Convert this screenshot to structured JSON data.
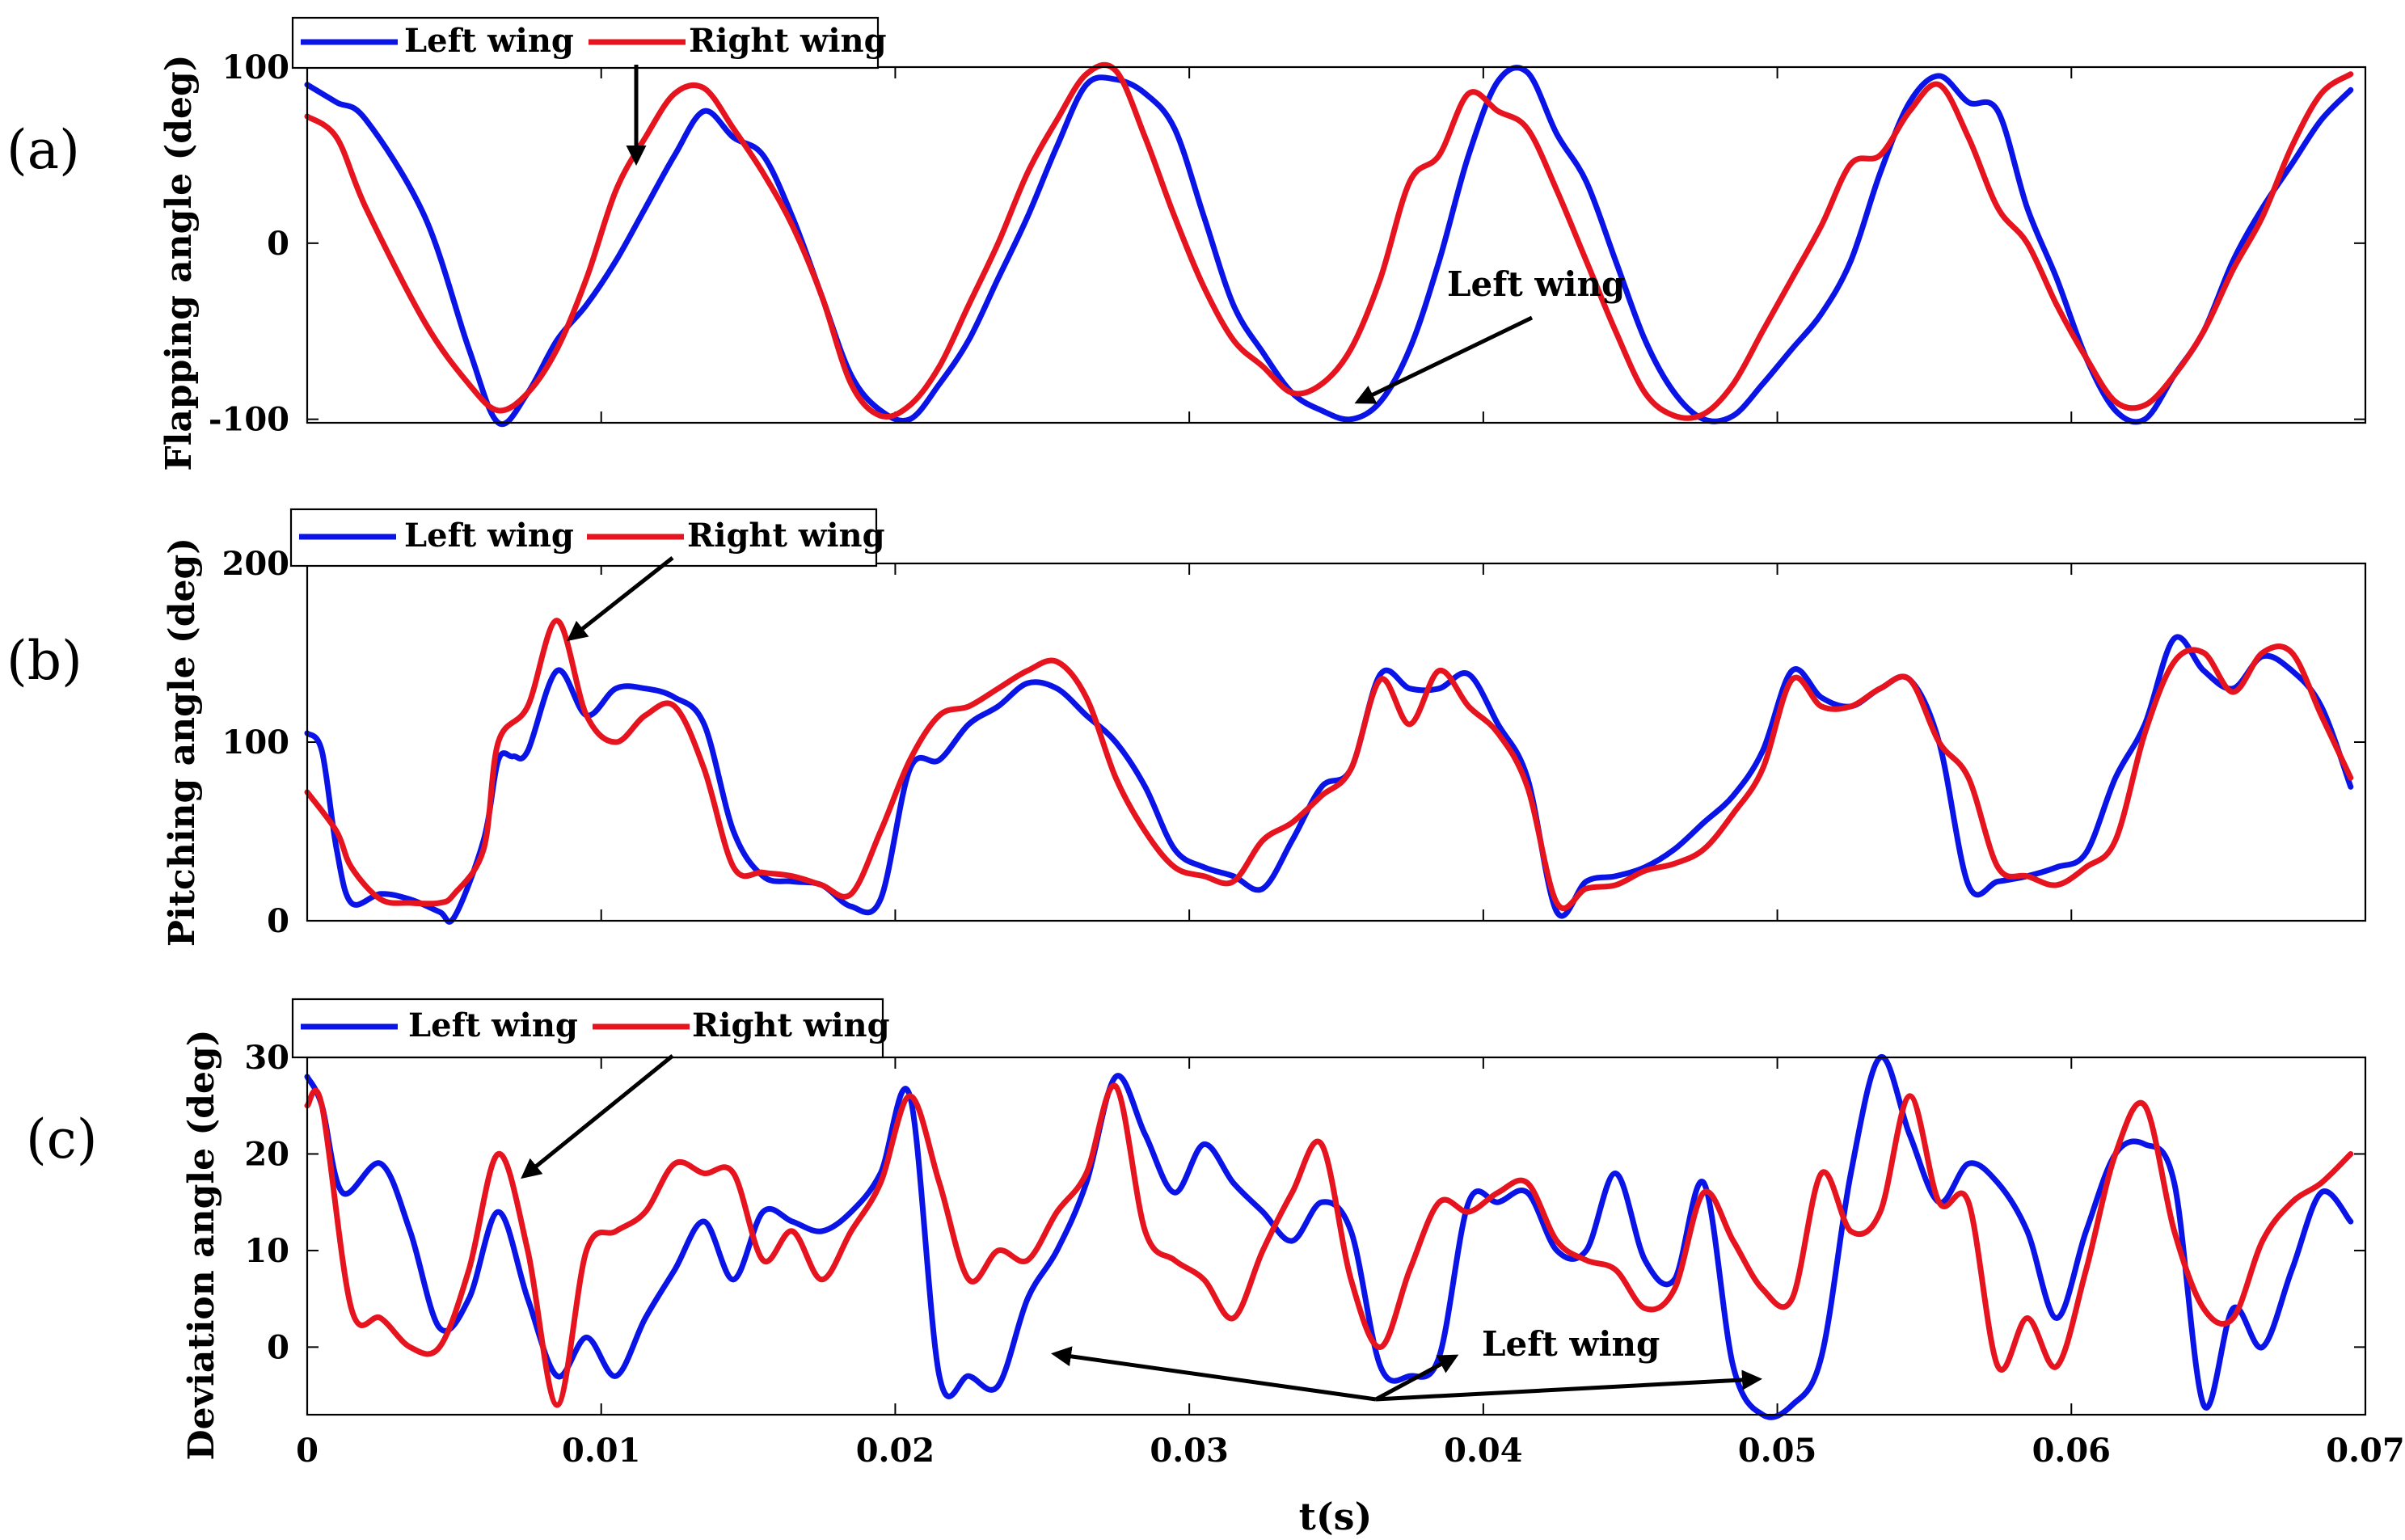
{
  "colors": {
    "left": "#0a14e6",
    "right": "#e6141e"
  },
  "xlabel": "t(s)",
  "x_ticks": [
    0,
    0.01,
    0.02,
    0.03,
    0.04,
    0.05,
    0.06,
    0.07
  ],
  "x_tick_labels": [
    "0",
    "0.01",
    "0.02",
    "0.03",
    "0.04",
    "0.05",
    "0.06",
    "0.07"
  ],
  "chart_data": [
    {
      "type": "line",
      "panel_label": "(a)",
      "ylabel": "Flapping angle (deg)",
      "xlim": [
        0,
        0.07
      ],
      "ylim": [
        -102,
        100
      ],
      "y_ticks": [
        -100,
        0,
        100
      ],
      "y_tick_labels": [
        "-100",
        "0",
        "100"
      ],
      "legend": [
        "Left wing",
        "Right wing"
      ],
      "annotation": "Left wing",
      "series": [
        {
          "name": "Left wing",
          "x": [
            0,
            0.001,
            0.002,
            0.004,
            0.0055,
            0.0065,
            0.0075,
            0.0085,
            0.0095,
            0.0105,
            0.0115,
            0.0125,
            0.0135,
            0.0145,
            0.0155,
            0.0165,
            0.0175,
            0.0185,
            0.0195,
            0.0205,
            0.0215,
            0.0225,
            0.0235,
            0.0245,
            0.0255,
            0.0265,
            0.0275,
            0.0285,
            0.0295,
            0.0305,
            0.0315,
            0.0325,
            0.0335,
            0.0345,
            0.0355,
            0.0365,
            0.0375,
            0.0385,
            0.0395,
            0.0405,
            0.0415,
            0.0425,
            0.0435,
            0.0445,
            0.0455,
            0.0465,
            0.0475,
            0.0485,
            0.0495,
            0.0505,
            0.0515,
            0.0525,
            0.0535,
            0.0545,
            0.0555,
            0.0565,
            0.0575,
            0.0585,
            0.0595,
            0.0605,
            0.0615,
            0.0625,
            0.0635,
            0.0645,
            0.0655,
            0.0665,
            0.0675,
            0.0685,
            0.0695
          ],
          "y": [
            90,
            80,
            70,
            15,
            -60,
            -102,
            -85,
            -55,
            -35,
            -10,
            20,
            50,
            75,
            60,
            50,
            15,
            -30,
            -75,
            -95,
            -100,
            -80,
            -55,
            -20,
            15,
            55,
            90,
            93,
            85,
            65,
            15,
            -35,
            -62,
            -85,
            -95,
            -100,
            -90,
            -60,
            -10,
            50,
            92,
            97,
            62,
            35,
            -10,
            -55,
            -85,
            -100,
            -98,
            -80,
            -60,
            -40,
            -10,
            40,
            80,
            95,
            80,
            75,
            20,
            -20,
            -65,
            -95,
            -100,
            -75,
            -50,
            -10,
            20,
            45,
            70,
            87
          ]
        },
        {
          "name": "Right wing",
          "x": [
            0,
            0.001,
            0.002,
            0.004,
            0.0055,
            0.0065,
            0.0075,
            0.0085,
            0.0095,
            0.0105,
            0.0115,
            0.0125,
            0.0135,
            0.0145,
            0.0155,
            0.0165,
            0.0175,
            0.0185,
            0.0195,
            0.0205,
            0.0215,
            0.0225,
            0.0235,
            0.0245,
            0.0255,
            0.0265,
            0.0275,
            0.0285,
            0.0295,
            0.0305,
            0.0315,
            0.0325,
            0.0335,
            0.0345,
            0.0355,
            0.0365,
            0.0375,
            0.0385,
            0.0395,
            0.0405,
            0.0415,
            0.0425,
            0.0435,
            0.0445,
            0.0455,
            0.0465,
            0.0475,
            0.0485,
            0.0495,
            0.0505,
            0.0515,
            0.0525,
            0.0535,
            0.0545,
            0.0555,
            0.0565,
            0.0575,
            0.0585,
            0.0595,
            0.0605,
            0.0615,
            0.0625,
            0.0635,
            0.0645,
            0.0655,
            0.0665,
            0.0675,
            0.0685,
            0.0695
          ],
          "y": [
            72,
            60,
            20,
            -45,
            -80,
            -95,
            -85,
            -60,
            -20,
            30,
            60,
            85,
            88,
            65,
            40,
            10,
            -30,
            -80,
            -98,
            -92,
            -70,
            -35,
            0,
            40,
            70,
            96,
            98,
            60,
            15,
            -25,
            -55,
            -70,
            -85,
            -80,
            -60,
            -20,
            35,
            50,
            85,
            75,
            65,
            30,
            -10,
            -50,
            -85,
            -98,
            -97,
            -80,
            -50,
            -20,
            10,
            45,
            50,
            75,
            90,
            60,
            20,
            0,
            -35,
            -65,
            -90,
            -92,
            -75,
            -50,
            -15,
            15,
            55,
            85,
            96
          ]
        }
      ]
    },
    {
      "type": "line",
      "panel_label": "(b)",
      "ylabel": "Pitching angle (deg)",
      "xlim": [
        0,
        0.07
      ],
      "ylim": [
        0,
        200
      ],
      "y_ticks": [
        0,
        100,
        200
      ],
      "y_tick_labels": [
        "0",
        "100",
        "200"
      ],
      "legend": [
        "Left wing",
        "Right wing"
      ],
      "series": [
        {
          "name": "Left wing",
          "x": [
            0,
            0.0005,
            0.001,
            0.0015,
            0.0025,
            0.0035,
            0.0045,
            0.005,
            0.006,
            0.0065,
            0.007,
            0.0075,
            0.0085,
            0.0095,
            0.0105,
            0.0115,
            0.0125,
            0.0135,
            0.0145,
            0.0155,
            0.0165,
            0.0175,
            0.0185,
            0.0195,
            0.0205,
            0.0215,
            0.0225,
            0.0235,
            0.0245,
            0.0255,
            0.0265,
            0.0275,
            0.0285,
            0.0295,
            0.0305,
            0.0315,
            0.0325,
            0.0335,
            0.0345,
            0.0355,
            0.0365,
            0.0375,
            0.0385,
            0.0395,
            0.0405,
            0.0415,
            0.0425,
            0.0435,
            0.0445,
            0.0455,
            0.0465,
            0.0475,
            0.0485,
            0.0495,
            0.0505,
            0.0515,
            0.0525,
            0.0535,
            0.0545,
            0.0555,
            0.0565,
            0.0575,
            0.0585,
            0.0595,
            0.0605,
            0.0615,
            0.0625,
            0.0635,
            0.0645,
            0.0655,
            0.0665,
            0.0675,
            0.0685,
            0.0695
          ],
          "y": [
            105,
            95,
            40,
            10,
            15,
            12,
            5,
            2,
            45,
            90,
            92,
            95,
            140,
            115,
            130,
            130,
            125,
            110,
            50,
            25,
            22,
            20,
            8,
            12,
            85,
            90,
            110,
            120,
            133,
            130,
            115,
            100,
            75,
            40,
            30,
            25,
            18,
            45,
            75,
            85,
            138,
            130,
            130,
            138,
            110,
            80,
            5,
            22,
            25,
            30,
            40,
            55,
            70,
            95,
            140,
            125,
            120,
            130,
            135,
            100,
            20,
            22,
            25,
            30,
            38,
            80,
            110,
            158,
            140,
            130,
            148,
            140,
            120,
            75
          ]
        },
        {
          "name": "Right wing",
          "x": [
            0,
            0.001,
            0.0015,
            0.0025,
            0.0035,
            0.0045,
            0.005,
            0.006,
            0.0065,
            0.0075,
            0.0085,
            0.0095,
            0.0105,
            0.0115,
            0.0125,
            0.0135,
            0.0145,
            0.0155,
            0.0165,
            0.0175,
            0.0185,
            0.0195,
            0.0205,
            0.0215,
            0.0225,
            0.0235,
            0.0245,
            0.0255,
            0.0265,
            0.0275,
            0.0285,
            0.0295,
            0.0305,
            0.0315,
            0.0325,
            0.0335,
            0.0345,
            0.0355,
            0.0365,
            0.0375,
            0.0385,
            0.0395,
            0.0405,
            0.0415,
            0.0425,
            0.0435,
            0.0445,
            0.0455,
            0.0465,
            0.0475,
            0.0485,
            0.0495,
            0.0505,
            0.0515,
            0.0525,
            0.0535,
            0.0545,
            0.0555,
            0.0565,
            0.0575,
            0.0585,
            0.0595,
            0.0605,
            0.0615,
            0.0625,
            0.0635,
            0.0645,
            0.0655,
            0.0665,
            0.0675,
            0.0685,
            0.0695
          ],
          "y": [
            72,
            50,
            30,
            12,
            10,
            10,
            15,
            40,
            100,
            120,
            168,
            115,
            100,
            115,
            120,
            85,
            30,
            27,
            25,
            20,
            15,
            50,
            90,
            115,
            120,
            130,
            140,
            145,
            125,
            80,
            50,
            30,
            25,
            22,
            45,
            55,
            70,
            85,
            135,
            110,
            140,
            120,
            105,
            75,
            10,
            18,
            20,
            28,
            32,
            40,
            60,
            85,
            135,
            120,
            120,
            130,
            135,
            100,
            80,
            30,
            25,
            20,
            30,
            45,
            105,
            145,
            150,
            128,
            150,
            150,
            115,
            80
          ]
        }
      ]
    },
    {
      "type": "line",
      "panel_label": "(c)",
      "ylabel": "Deviation angle (deg)",
      "xlim": [
        0,
        0.07
      ],
      "ylim": [
        -7,
        30
      ],
      "y_ticks": [
        0,
        10,
        20,
        30
      ],
      "y_tick_labels": [
        "0",
        "10",
        "20",
        "30"
      ],
      "legend": [
        "Left wing",
        "Right wing"
      ],
      "annotation": "Left wing",
      "series": [
        {
          "name": "Left wing",
          "x": [
            0,
            0.0005,
            0.0012,
            0.0025,
            0.0035,
            0.0045,
            0.0055,
            0.0065,
            0.0075,
            0.0085,
            0.0095,
            0.0105,
            0.0115,
            0.0125,
            0.0135,
            0.0145,
            0.0155,
            0.0165,
            0.0175,
            0.0185,
            0.0195,
            0.0205,
            0.0215,
            0.0225,
            0.0235,
            0.0245,
            0.0255,
            0.0265,
            0.0275,
            0.0285,
            0.0295,
            0.0305,
            0.0315,
            0.0325,
            0.0335,
            0.0345,
            0.0355,
            0.0365,
            0.0375,
            0.0385,
            0.0395,
            0.0405,
            0.0415,
            0.0425,
            0.0435,
            0.0445,
            0.0455,
            0.0465,
            0.0475,
            0.0485,
            0.0495,
            0.0505,
            0.0515,
            0.0525,
            0.0535,
            0.0545,
            0.0555,
            0.0565,
            0.0575,
            0.0585,
            0.0595,
            0.0605,
            0.0615,
            0.0625,
            0.0635,
            0.0645,
            0.0655,
            0.0665,
            0.0675,
            0.0685,
            0.0695
          ],
          "y": [
            28,
            25,
            16,
            19,
            12,
            2,
            5,
            14,
            5,
            -3,
            1,
            -3,
            3,
            8,
            13,
            7,
            14,
            13,
            12,
            14,
            18,
            26,
            -3,
            -3,
            -4,
            5,
            10,
            17,
            28,
            22,
            16,
            21,
            17,
            14,
            11,
            15,
            12,
            -2,
            -3,
            -1,
            15,
            15,
            16,
            10,
            10,
            18,
            9,
            7,
            17,
            -2,
            -7,
            -6,
            -1,
            18,
            30,
            22,
            15,
            19,
            17,
            12,
            3,
            12,
            20,
            21,
            17,
            -6,
            4,
            0,
            8,
            16,
            13
          ]
        },
        {
          "name": "Right wing",
          "x": [
            0,
            0.0005,
            0.0015,
            0.0025,
            0.0035,
            0.0045,
            0.0055,
            0.0065,
            0.0075,
            0.0085,
            0.0095,
            0.0105,
            0.0115,
            0.0125,
            0.0135,
            0.0145,
            0.0155,
            0.0165,
            0.0175,
            0.0185,
            0.0195,
            0.0205,
            0.0215,
            0.0225,
            0.0235,
            0.0245,
            0.0255,
            0.0265,
            0.0275,
            0.0285,
            0.0295,
            0.0305,
            0.0315,
            0.0325,
            0.0335,
            0.0345,
            0.0355,
            0.0365,
            0.0375,
            0.0385,
            0.0395,
            0.0405,
            0.0415,
            0.0425,
            0.0435,
            0.0445,
            0.0455,
            0.0465,
            0.0475,
            0.0485,
            0.0495,
            0.0505,
            0.0515,
            0.0525,
            0.0535,
            0.0545,
            0.0555,
            0.0565,
            0.0575,
            0.0585,
            0.0595,
            0.0605,
            0.0615,
            0.0625,
            0.0635,
            0.0645,
            0.0655,
            0.0665,
            0.0675,
            0.0685,
            0.0695
          ],
          "y": [
            25,
            25,
            4,
            3,
            0,
            0,
            8,
            20,
            10,
            -6,
            10,
            12,
            14,
            19,
            18,
            18,
            9,
            12,
            7,
            12,
            17,
            26,
            17,
            7,
            10,
            9,
            14,
            18,
            27,
            12,
            9,
            7,
            3,
            10,
            16,
            21,
            7,
            0,
            8,
            15,
            14,
            16,
            17,
            11,
            9,
            8,
            4,
            6,
            16,
            11,
            6,
            5,
            18,
            12,
            14,
            26,
            15,
            15,
            -2,
            3,
            -2,
            8,
            20,
            25,
            12,
            4,
            3,
            11,
            15,
            17,
            20
          ]
        }
      ]
    }
  ]
}
